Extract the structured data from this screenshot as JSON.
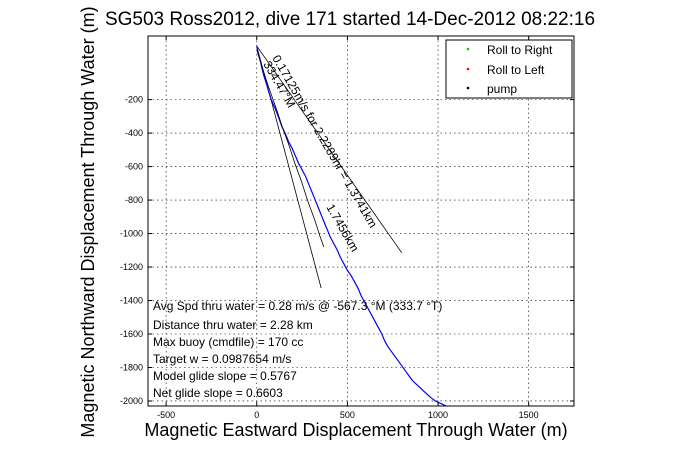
{
  "chart_data": {
    "type": "line",
    "title": "SG503 Ross2012, dive 171 started 14-Dec-2012 08:22:16",
    "xlabel": "Magnetic Eastward Displacement Through Water (m)",
    "ylabel": "Magnetic Northward Displacement Through Water (m)",
    "xlim": [
      -600,
      1750
    ],
    "ylim": [
      -2030,
      180
    ],
    "xticks": [
      -500,
      0,
      500,
      1000,
      1500
    ],
    "yticks": [
      -2000,
      -1800,
      -1600,
      -1400,
      -1200,
      -1000,
      -800,
      -600,
      -400,
      -200
    ],
    "grid": true,
    "legend_position": "top-right",
    "legend": [
      {
        "label": "Roll to Right",
        "color": "#00cc00",
        "marker": "dot"
      },
      {
        "label": "Roll to Left",
        "color": "#ff0000",
        "marker": "dot"
      },
      {
        "label": "pump",
        "color": "#000000",
        "marker": "dot"
      }
    ],
    "series": [
      {
        "color": "#0000ff",
        "x": [
          0,
          5,
          18,
          30,
          40,
          55,
          65,
          80,
          100,
          115,
          125,
          138,
          160,
          175,
          195,
          215,
          230,
          250,
          270,
          285,
          300,
          315,
          330,
          345,
          360,
          375,
          390,
          405,
          425,
          445,
          460,
          480,
          500,
          520,
          540,
          560,
          575,
          595,
          615,
          635,
          655,
          670,
          690,
          705,
          720,
          740,
          760,
          780,
          800,
          820,
          840,
          860,
          880,
          900,
          920,
          940,
          960,
          985,
          1005,
          1025,
          1045
        ],
        "y": [
          120,
          90,
          40,
          -20,
          -60,
          -110,
          -150,
          -200,
          -250,
          -290,
          -320,
          -360,
          -410,
          -450,
          -490,
          -540,
          -580,
          -620,
          -660,
          -700,
          -740,
          -780,
          -820,
          -860,
          -900,
          -940,
          -980,
          -1020,
          -1060,
          -1100,
          -1140,
          -1180,
          -1220,
          -1250,
          -1290,
          -1330,
          -1370,
          -1410,
          -1450,
          -1490,
          -1530,
          -1560,
          -1600,
          -1640,
          -1670,
          -1700,
          -1730,
          -1760,
          -1790,
          -1820,
          -1850,
          -1880,
          -1900,
          -1920,
          -1940,
          -1960,
          -1980,
          -2000,
          -2010,
          -2020,
          -2030
        ]
      },
      {
        "color": "#000000",
        "x": [
          0,
          10,
          25,
          40,
          55,
          70,
          90,
          110,
          125,
          140,
          160,
          180,
          195,
          210,
          230,
          250,
          265,
          280,
          300,
          320,
          335,
          350,
          370
        ],
        "y": [
          100,
          60,
          10,
          -40,
          -90,
          -140,
          -200,
          -260,
          -310,
          -360,
          -420,
          -480,
          -530,
          -580,
          -640,
          -700,
          -750,
          -800,
          -860,
          -920,
          -970,
          -1020,
          -1080
        ]
      }
    ],
    "reference_lines": [
      {
        "x": [
          0,
          800
        ],
        "y": [
          120,
          -1115
        ]
      },
      {
        "x": [
          0,
          355
        ],
        "y": [
          120,
          -1325
        ]
      }
    ],
    "annotations": [
      "0.17125m/s for 2.2289hr = 1.3741km",
      "334.47°M",
      "1.7456km"
    ],
    "textbox": [
      "Avg Spd thru water =  0.28 m/s @ -567.3   °M (333.7 °T)",
      "Distance thru water =  2.28 km",
      "Max buoy (cmdfile) = 170 cc",
      "Target w = 0.0987654 m/s",
      "Model glide slope = 0.5767",
      "Net glide slope = 0.6603"
    ]
  }
}
